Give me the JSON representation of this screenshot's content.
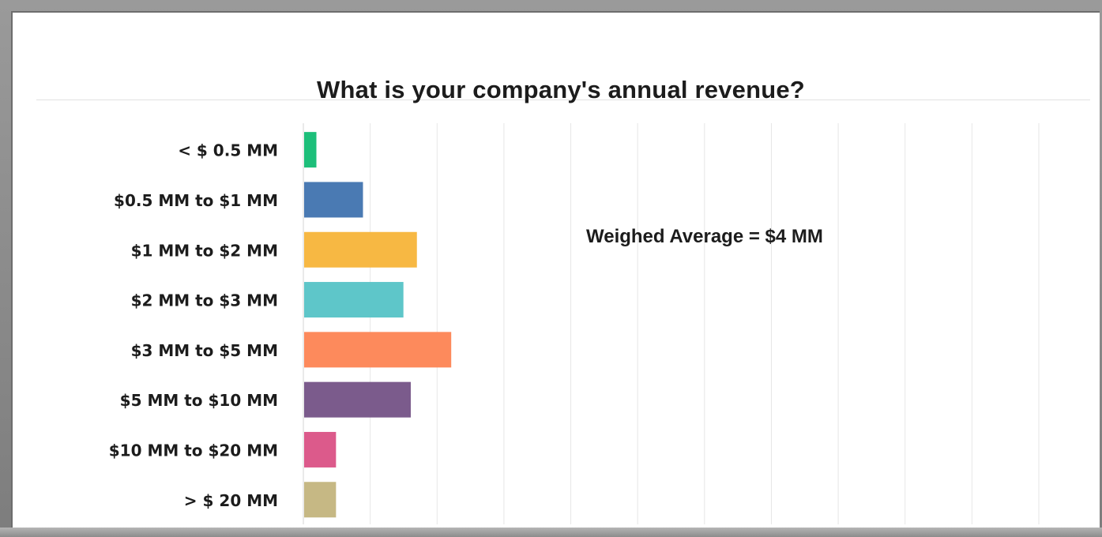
{
  "chart_data": {
    "type": "bar",
    "orientation": "horizontal",
    "title": "What is your company's annual revenue?",
    "annotation": "Weighed Average = $4 MM",
    "categories": [
      "< $ 0.5 MM",
      "$0.5 MM to $1 MM",
      "$1 MM to $2 MM",
      "$2 MM to $3 MM",
      "$3 MM to $5 MM",
      "$5 MM to $10 MM",
      "$10 MM to $20 MM",
      "> $ 20 MM"
    ],
    "values": [
      1.0,
      4.8,
      9.2,
      8.1,
      12.0,
      8.7,
      2.6,
      2.6
    ],
    "colors": [
      "#1dbf7a",
      "#4a7ab3",
      "#f7b843",
      "#5ec6c9",
      "#fd8a5c",
      "#7b5b8c",
      "#dc5a8b",
      "#c6b884"
    ],
    "xlim": [
      0,
      60
    ],
    "xlabel": "",
    "ylabel": "",
    "grid": true
  }
}
